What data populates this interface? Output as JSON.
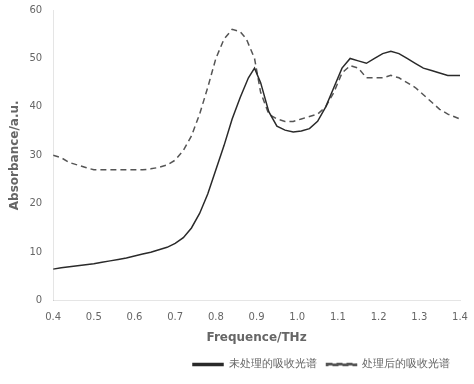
{
  "chart_data": {
    "type": "line",
    "xlabel": "Frequence/THz",
    "ylabel": "Absorbance/a.u.",
    "xlim": [
      0.4,
      1.4
    ],
    "ylim": [
      0,
      60
    ],
    "xticks": [
      0.4,
      0.5,
      0.6,
      0.7,
      0.8,
      0.9,
      {
        "value": 1,
        "label": "1.0"
      },
      1.1,
      1.2,
      1.3,
      1.4
    ],
    "yticks": [
      0,
      10,
      20,
      30,
      40,
      50,
      60
    ],
    "grid": false,
    "legend": "lower right",
    "series": [
      {
        "name": "未处理的吸收光谱",
        "color": "#2a2a2a",
        "line_style": "solid",
        "x": [
          0.4,
          0.42,
          0.44,
          0.46,
          0.48,
          0.5,
          0.52,
          0.54,
          0.56,
          0.58,
          0.6,
          0.62,
          0.64,
          0.66,
          0.68,
          0.7,
          0.72,
          0.74,
          0.76,
          0.78,
          0.8,
          0.82,
          0.84,
          0.86,
          0.88,
          0.895,
          0.91,
          0.93,
          0.95,
          0.97,
          0.99,
          1.01,
          1.03,
          1.05,
          1.07,
          1.09,
          1.11,
          1.13,
          1.15,
          1.17,
          1.19,
          1.21,
          1.23,
          1.25,
          1.27,
          1.29,
          1.31,
          1.33,
          1.35,
          1.37,
          1.4
        ],
        "values": [
          6.5,
          6.8,
          7.0,
          7.2,
          7.4,
          7.6,
          7.9,
          8.2,
          8.5,
          8.8,
          9.2,
          9.6,
          10.0,
          10.5,
          11.0,
          11.8,
          13.0,
          15.0,
          18.0,
          22.0,
          27.0,
          32.0,
          37.5,
          42.0,
          46.0,
          48.0,
          45.0,
          39.0,
          36.0,
          35.2,
          34.8,
          35.0,
          35.5,
          37.0,
          40.0,
          44.0,
          48.0,
          50.0,
          49.5,
          49.0,
          50.0,
          51.0,
          51.5,
          51.0,
          50.0,
          49.0,
          48.0,
          47.5,
          47.0,
          46.5,
          46.5
        ]
      },
      {
        "name": "处理后的吸收光谱",
        "color": "#555555",
        "line_style": "dashed",
        "x": [
          0.4,
          0.42,
          0.44,
          0.46,
          0.48,
          0.5,
          0.52,
          0.54,
          0.56,
          0.58,
          0.6,
          0.62,
          0.64,
          0.66,
          0.68,
          0.7,
          0.72,
          0.74,
          0.76,
          0.78,
          0.8,
          0.82,
          0.84,
          0.86,
          0.875,
          0.895,
          0.91,
          0.93,
          0.95,
          0.97,
          0.99,
          1.01,
          1.03,
          1.05,
          1.07,
          1.09,
          1.11,
          1.13,
          1.15,
          1.17,
          1.19,
          1.21,
          1.23,
          1.25,
          1.27,
          1.29,
          1.31,
          1.33,
          1.35,
          1.37,
          1.4
        ],
        "values": [
          30.0,
          29.5,
          28.5,
          28.0,
          27.5,
          27.0,
          27.0,
          27.0,
          27.0,
          27.0,
          27.0,
          27.0,
          27.2,
          27.5,
          28.0,
          29.0,
          31.0,
          34.0,
          38.5,
          44.0,
          50.0,
          54.0,
          56.0,
          55.5,
          54.0,
          50.0,
          43.0,
          38.5,
          37.5,
          37.0,
          37.0,
          37.5,
          38.0,
          38.5,
          40.0,
          43.0,
          47.0,
          48.5,
          48.0,
          46.0,
          46.0,
          46.0,
          46.5,
          46.0,
          45.0,
          44.0,
          42.5,
          41.0,
          39.5,
          38.5,
          37.5
        ]
      }
    ]
  }
}
